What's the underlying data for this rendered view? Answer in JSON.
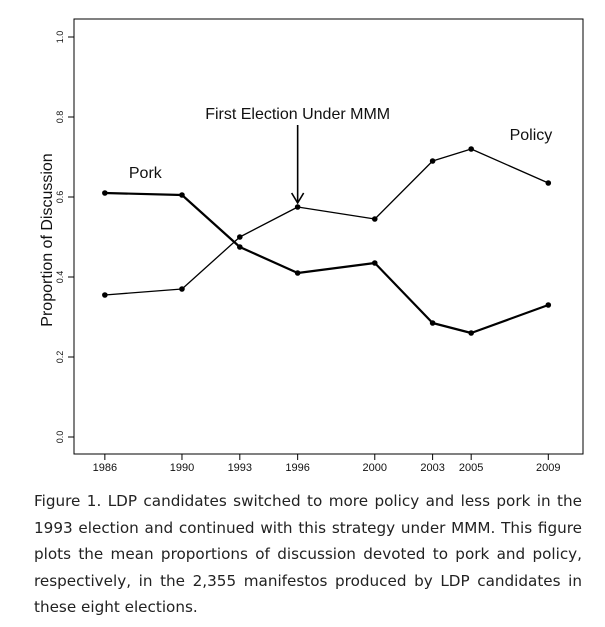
{
  "chart_data": {
    "type": "line",
    "x": [
      1986,
      1990,
      1993,
      1996,
      2000,
      2003,
      2005,
      2009
    ],
    "x_tick_labels": [
      "1986",
      "1990",
      "1993",
      "1996",
      "2000",
      "2003",
      "2005",
      "2009"
    ],
    "ylabel": "Proportion of Discussion",
    "ylim": [
      0.0,
      1.0
    ],
    "y_ticks": [
      0.0,
      0.2,
      0.4,
      0.6,
      0.8,
      1.0
    ],
    "y_tick_labels": [
      "0.0",
      "0.2",
      "0.4",
      "0.6",
      "0.8",
      "1.0"
    ],
    "grid": false,
    "series": [
      {
        "name": "Pork",
        "values": [
          0.61,
          0.605,
          0.475,
          0.41,
          0.435,
          0.285,
          0.26,
          0.33
        ]
      },
      {
        "name": "Policy",
        "values": [
          0.355,
          0.37,
          0.5,
          0.575,
          0.545,
          0.69,
          0.72,
          0.635
        ]
      }
    ],
    "annotations": [
      {
        "text": "First Election Under MMM",
        "x": 1996,
        "y_label": 0.81,
        "y_arrow_tip": 0.585
      }
    ]
  },
  "caption": "Figure 1. LDP candidates switched to more policy and less pork in the 1993 election and continued with this strategy under MMM. This figure plots the mean proportions of discussion devoted to pork and policy, respectively, in the 2,355 manifestos produced by LDP candidates in these eight elections."
}
